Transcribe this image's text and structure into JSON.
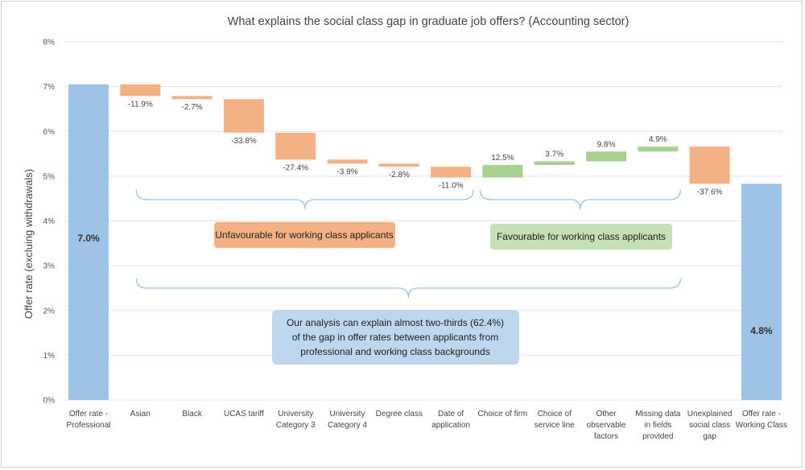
{
  "chart_data": {
    "type": "waterfall",
    "title": "What explains the social class gap in graduate job offers? (Accounting sector)",
    "ylabel": "Offer rate (excluing withdrawals)",
    "xlabel": "",
    "ylim": [
      0,
      8
    ],
    "y_ticks": [
      "0%",
      "1%",
      "2%",
      "3%",
      "4%",
      "5%",
      "6%",
      "7%",
      "8%"
    ],
    "grid": true,
    "start": {
      "category": [
        "Offer rate -",
        "Professional"
      ],
      "value": 7.05,
      "label": "7.0%"
    },
    "end": {
      "category": [
        "Offer rate -",
        "Working Class"
      ],
      "value": 4.83,
      "label": "4.8%"
    },
    "steps": [
      {
        "category": [
          "Asian"
        ],
        "from": 7.05,
        "to": 6.79,
        "label": "-11.9%",
        "effect": "unfavourable"
      },
      {
        "category": [
          "Black"
        ],
        "from": 6.79,
        "to": 6.72,
        "label": "-2.7%",
        "effect": "unfavourable"
      },
      {
        "category": [
          "UCAS tariff"
        ],
        "from": 6.72,
        "to": 5.97,
        "label": "-33.8%",
        "effect": "unfavourable"
      },
      {
        "category": [
          "University",
          "Category 3"
        ],
        "from": 5.97,
        "to": 5.37,
        "label": "-27.4%",
        "effect": "unfavourable"
      },
      {
        "category": [
          "University",
          "Category 4"
        ],
        "from": 5.37,
        "to": 5.28,
        "label": "-3.9%",
        "effect": "unfavourable"
      },
      {
        "category": [
          "Degree class"
        ],
        "from": 5.28,
        "to": 5.21,
        "label": "-2.8%",
        "effect": "unfavourable"
      },
      {
        "category": [
          "Date of",
          "application"
        ],
        "from": 5.21,
        "to": 4.97,
        "label": "-11.0%",
        "effect": "unfavourable"
      },
      {
        "category": [
          "Choice of firm"
        ],
        "from": 4.97,
        "to": 5.25,
        "label": "12.5%",
        "effect": "favourable"
      },
      {
        "category": [
          "Choice of",
          "service line"
        ],
        "from": 5.25,
        "to": 5.33,
        "label": "3.7%",
        "effect": "favourable"
      },
      {
        "category": [
          "Other",
          "observable",
          "factors"
        ],
        "from": 5.33,
        "to": 5.55,
        "label": "9.8%",
        "effect": "favourable"
      },
      {
        "category": [
          "Missing data",
          "in fields",
          "provided"
        ],
        "from": 5.55,
        "to": 5.66,
        "label": "4.9%",
        "effect": "favourable"
      },
      {
        "category": [
          "Unexplained",
          "social class",
          "gap"
        ],
        "from": 5.66,
        "to": 4.83,
        "label": "-37.6%",
        "effect": "unfavourable"
      }
    ],
    "annotations": {
      "unfavourable": "Unfavourable for working class applicants",
      "favourable": "Favourable for working class applicants",
      "summary": [
        "Our analysis can explain almost two-thirds (62.4%)",
        "of the gap in offer rates between applicants from",
        "professional and working class backgrounds"
      ]
    },
    "colors": {
      "total": "#9DC3E6",
      "unfavourable": "#F4B183",
      "favourable": "#A9D18E",
      "unfavourable_box": "#F4B183",
      "favourable_box": "#C5E0B4",
      "summary_box": "#BDD7EE",
      "brace": "#9DC3E6",
      "grid": "#E3E3E3"
    }
  }
}
